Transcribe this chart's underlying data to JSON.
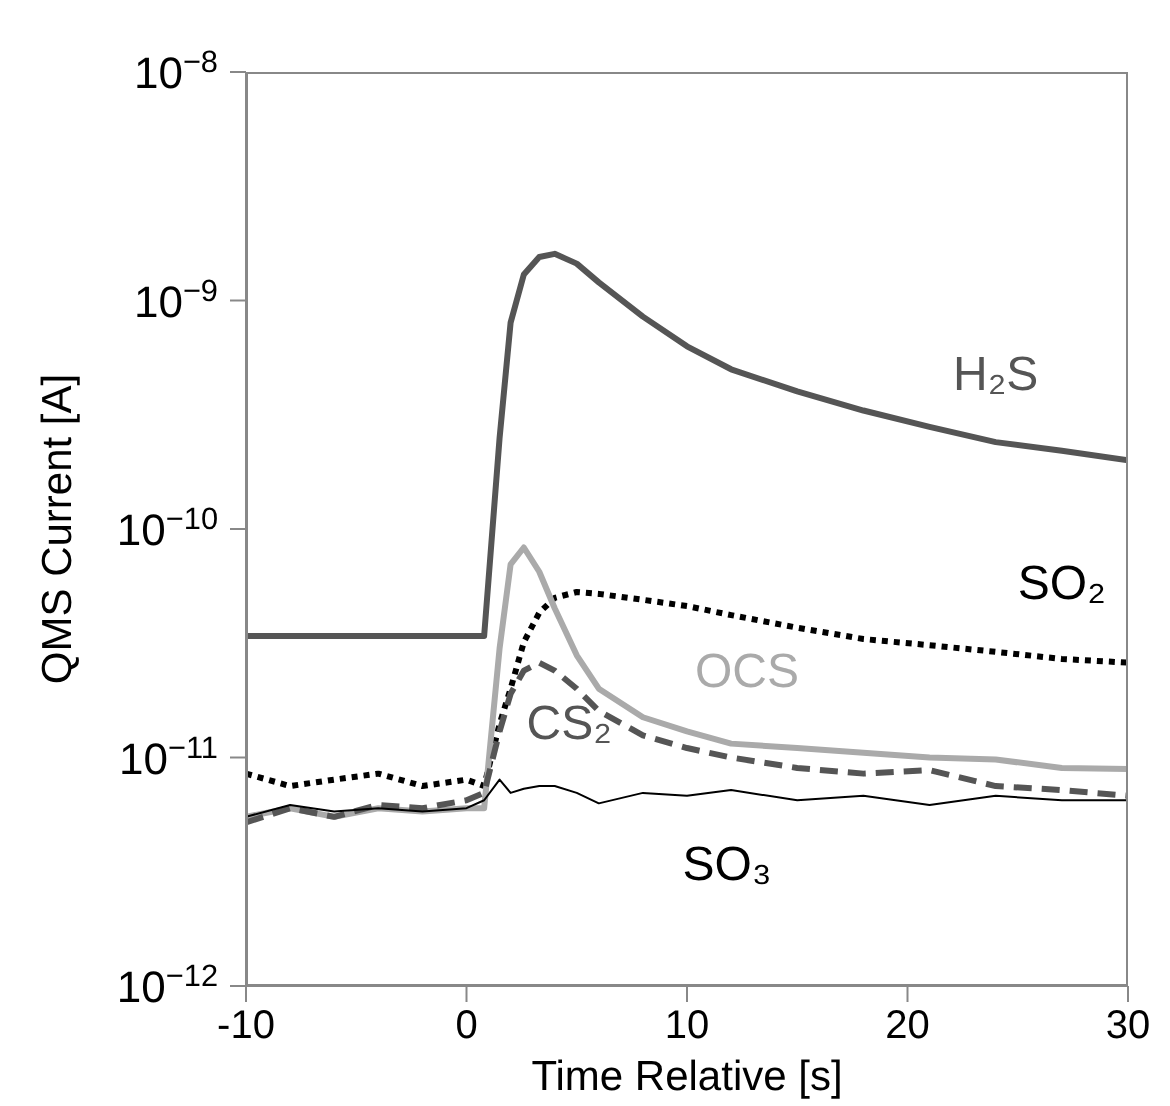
{
  "chart_data": {
    "type": "line",
    "xlabel": "Time Relative [s]",
    "ylabel": "QMS Current [A]",
    "log": "y",
    "marker": "none",
    "grid": false,
    "x": [
      -10,
      -8,
      -6,
      -4,
      -2,
      0,
      0.8,
      1.5,
      2,
      2.6,
      3.3,
      4,
      5,
      6,
      8,
      10,
      12,
      15,
      18,
      21,
      24,
      27,
      30
    ],
    "series": [
      {
        "name": "H₂S",
        "color": "#555555",
        "line_style": "solid",
        "values": [
          3.4e-11,
          3.4e-11,
          3.4e-11,
          3.4e-11,
          3.4e-11,
          3.4e-11,
          3.4e-11,
          2.5e-10,
          8e-10,
          1.3e-09,
          1.55e-09,
          1.6e-09,
          1.45e-09,
          1.2e-09,
          8.5e-10,
          6.3e-10,
          5e-10,
          4e-10,
          3.3e-10,
          2.8e-10,
          2.4e-10,
          2.2e-10,
          2e-10
        ]
      },
      {
        "name": "SO₂",
        "color": "#000000",
        "line_style": "dotted",
        "values": [
          8.5e-12,
          7.5e-12,
          8e-12,
          8.5e-12,
          7.5e-12,
          8e-12,
          7.5e-12,
          1.4e-11,
          2e-11,
          3.2e-11,
          4.3e-11,
          5e-11,
          5.3e-11,
          5.2e-11,
          4.9e-11,
          4.6e-11,
          4.2e-11,
          3.7e-11,
          3.3e-11,
          3.1e-11,
          2.9e-11,
          2.7e-11,
          2.6e-11
        ]
      },
      {
        "name": "OCS",
        "color": "#aaaaaa",
        "line_style": "solid",
        "values": [
          5.5e-12,
          6e-12,
          5.5e-12,
          6e-12,
          5.8e-12,
          6e-12,
          6e-12,
          3e-11,
          7e-11,
          8.3e-11,
          6.5e-11,
          4.5e-11,
          2.8e-11,
          2e-11,
          1.5e-11,
          1.3e-11,
          1.15e-11,
          1.1e-11,
          1.05e-11,
          1e-11,
          9.8e-12,
          9e-12,
          8.9e-12
        ]
      },
      {
        "name": "CS₂",
        "color": "#555555",
        "line_style": "dashed",
        "values": [
          5.2e-12,
          6e-12,
          5.5e-12,
          6.2e-12,
          6e-12,
          6.5e-12,
          7e-12,
          1.3e-11,
          1.9e-11,
          2.4e-11,
          2.6e-11,
          2.4e-11,
          2e-11,
          1.6e-11,
          1.25e-11,
          1.1e-11,
          1e-11,
          9e-12,
          8.5e-12,
          8.8e-12,
          7.5e-12,
          7.2e-12,
          6.8e-12
        ]
      },
      {
        "name": "SO₃",
        "color": "#000000",
        "line_style": "solid",
        "values": [
          5.5e-12,
          6.2e-12,
          5.8e-12,
          6e-12,
          5.8e-12,
          6e-12,
          6.5e-12,
          8e-12,
          7e-12,
          7.3e-12,
          7.5e-12,
          7.5e-12,
          7e-12,
          6.3e-12,
          7e-12,
          6.8e-12,
          7.2e-12,
          6.5e-12,
          6.8e-12,
          6.2e-12,
          6.8e-12,
          6.5e-12,
          6.5e-12
        ]
      }
    ],
    "xlim": [
      -10,
      30
    ],
    "xticks": [
      -10,
      0,
      10,
      20,
      30
    ],
    "ylim": [
      1e-12,
      1e-08
    ],
    "yticks": [
      {
        "value": 1e-12,
        "label": "10$^{−12}$"
      },
      {
        "value": 1e-11,
        "label": "10$^{−11}$"
      },
      {
        "value": 1e-10,
        "label": "10$^{−10}$"
      },
      {
        "value": 1e-09,
        "label": "10$^{−9}$"
      },
      {
        "value": 1e-08,
        "label": "10$^{−8}$"
      }
    ]
  }
}
